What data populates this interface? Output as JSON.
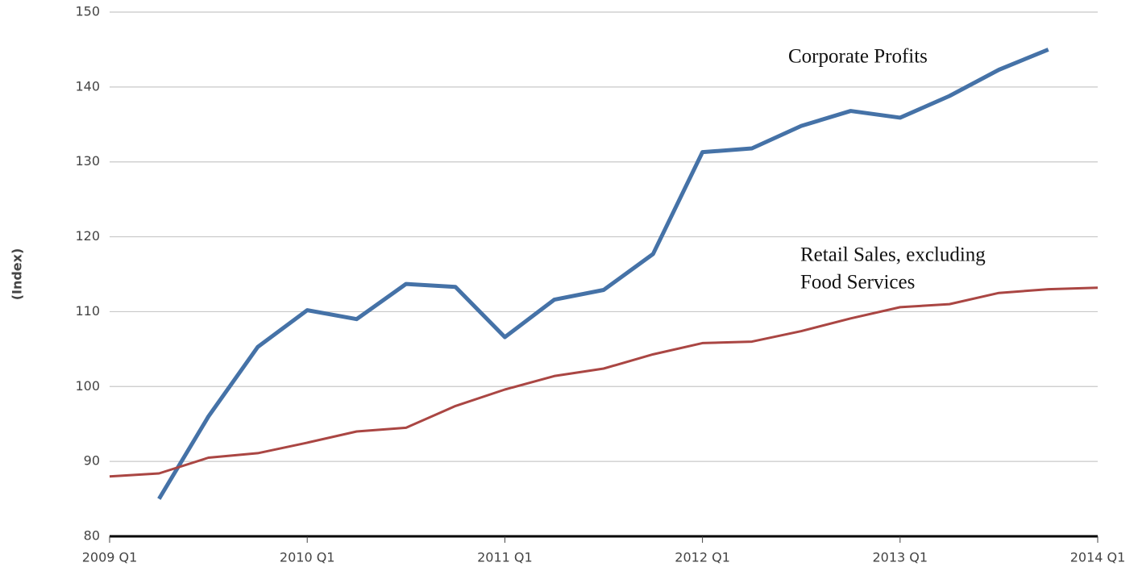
{
  "chart_data": {
    "type": "line",
    "y_label": "(Index)",
    "categories": [
      "2009 Q1",
      null,
      null,
      null,
      "2010 Q1",
      null,
      null,
      null,
      "2011 Q1",
      null,
      null,
      null,
      "2012 Q1",
      null,
      null,
      null,
      "2013 Q1",
      null,
      null,
      null,
      "2014 Q1"
    ],
    "series": [
      {
        "color": "#4572a7",
        "values": [
          null,
          85,
          96,
          105.3,
          110.2,
          109,
          113.7,
          113.3,
          106.6,
          111.6,
          112.9,
          117.7,
          131.3,
          131.8,
          134.8,
          136.8,
          135.9,
          138.8,
          142.3,
          145,
          null
        ]
      },
      {
        "color": "#aa4643",
        "values": [
          88,
          88.4,
          90.5,
          91.1,
          92.5,
          94,
          94.5,
          97.4,
          99.6,
          101.4,
          102.4,
          104.3,
          105.8,
          106,
          107.4,
          109.1,
          110.6,
          111,
          112.5,
          113,
          113.2
        ]
      }
    ],
    "annotations": [
      [
        "Corporate Profits"
      ],
      [
        "Retail Sales, excluding",
        "Food Services"
      ]
    ],
    "ylim": [
      80,
      150
    ],
    "yticks": [
      80,
      90,
      100,
      110,
      120,
      130,
      140,
      150
    ],
    "grid": true
  }
}
